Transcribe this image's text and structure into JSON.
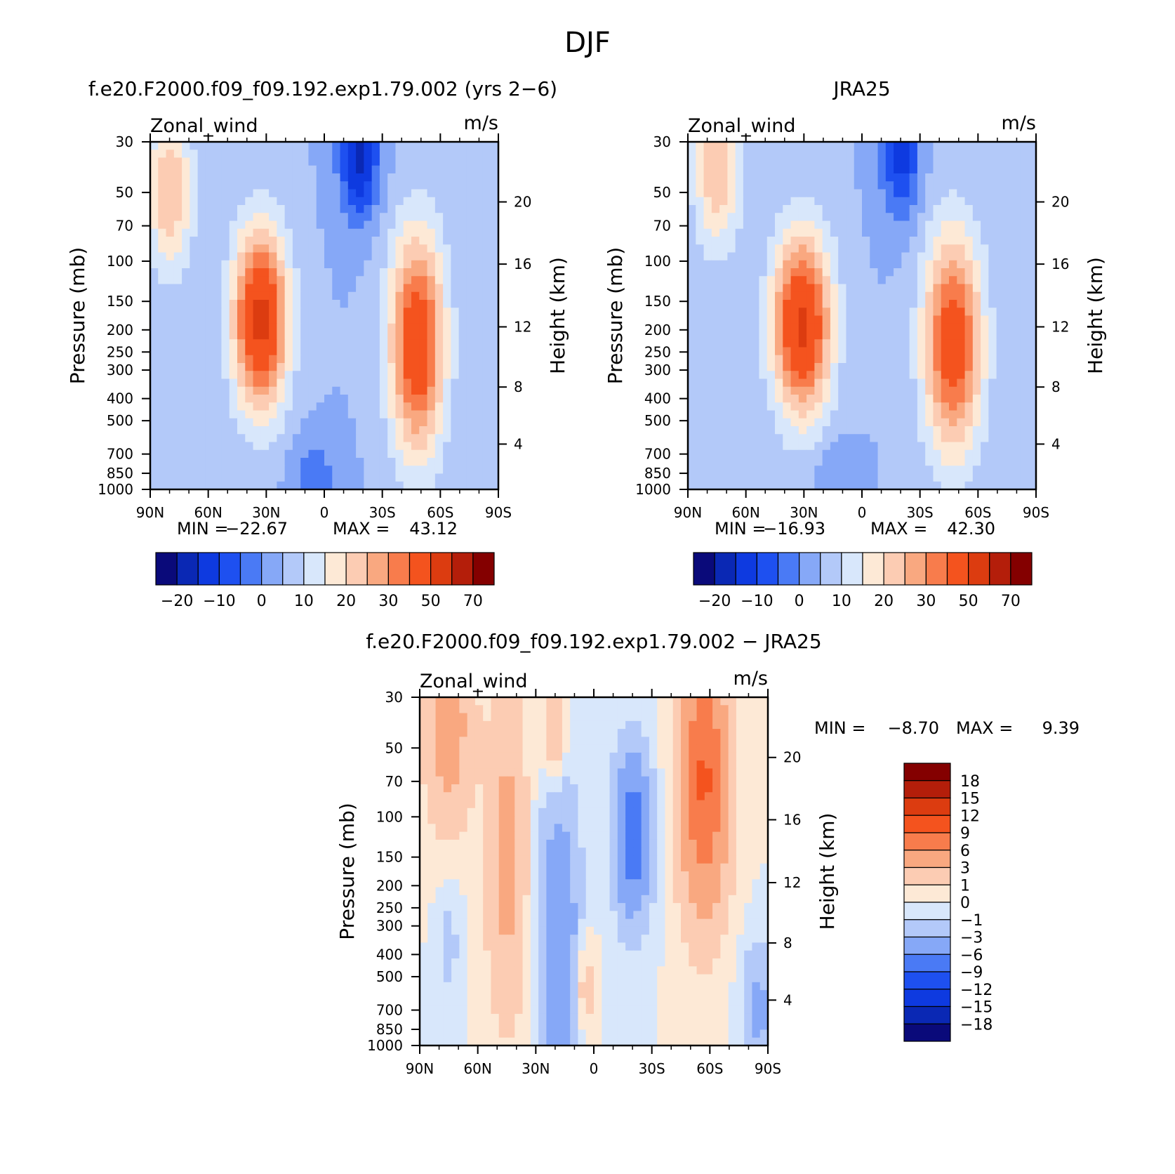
{
  "main_title": "DJF",
  "colors": {
    "abs_palette": [
      "#0a0a7a",
      "#0a28b4",
      "#0e3ae0",
      "#1e50f0",
      "#4a7af5",
      "#86a8f7",
      "#b3c9f9",
      "#d8e7fb",
      "#fde9d6",
      "#fcccb3",
      "#f9a880",
      "#f87c4c",
      "#f4531e",
      "#dc3c10",
      "#b41e0a",
      "#840000"
    ],
    "diff_palette": [
      "#0a0a7a",
      "#0a28b4",
      "#0e3ae0",
      "#1e50f0",
      "#4a7af5",
      "#86a8f7",
      "#b3c9f9",
      "#d8e7fb",
      "#fde9d6",
      "#fcccb3",
      "#f9a880",
      "#f87c4c",
      "#f4531e",
      "#dc3c10",
      "#b41e0a",
      "#840000"
    ]
  },
  "chart_data": [
    {
      "type": "heatmap",
      "title": "f.e20.F2000.f09_f09.192.exp1.79.002 (yrs 2−6)",
      "field_label": "Zonal_wind",
      "units": "m/s",
      "xlabel": "",
      "ylabel": "Pressure (mb)",
      "ylabel_right": "Height (km)",
      "x_ticks": [
        "90N",
        "60N",
        "30N",
        "0",
        "30S",
        "60S",
        "90S"
      ],
      "y_ticks": [
        "30",
        "50",
        "70",
        "100",
        "150",
        "200",
        "250",
        "300",
        "400",
        "500",
        "700",
        "850",
        "1000"
      ],
      "height_ticks": [
        "20",
        "16",
        "12",
        "8",
        "4"
      ],
      "y_scale": "log",
      "stats": {
        "min_label": "MIN =",
        "min_value": "−22.67",
        "max_label": "MAX =",
        "max_value": "43.12"
      },
      "colorbar": {
        "orientation": "horizontal",
        "labels": [
          "−20",
          "−10",
          "0",
          "10",
          "20",
          "30",
          "50",
          "70"
        ]
      },
      "features": [
        {
          "lat": 33,
          "p": 180,
          "value": 43,
          "width": 14,
          "depth": 0.9
        },
        {
          "lat": -48,
          "p": 230,
          "value": 38,
          "width": 14,
          "depth": 1.1
        },
        {
          "lat": 80,
          "p": 50,
          "value": 20,
          "width": 12,
          "depth": 0.8
        },
        {
          "lat": -18,
          "p": 35,
          "value": -22,
          "width": 10,
          "depth": 0.6
        },
        {
          "lat": 5,
          "p": 900,
          "value": -8,
          "width": 12,
          "depth": 0.4
        }
      ]
    },
    {
      "type": "heatmap",
      "title": "JRA25",
      "field_label": "Zonal_wind",
      "units": "m/s",
      "xlabel": "",
      "ylabel": "Pressure (mb)",
      "ylabel_right": "Height (km)",
      "x_ticks": [
        "90N",
        "60N",
        "30N",
        "0",
        "30S",
        "60S",
        "90S"
      ],
      "y_ticks": [
        "30",
        "50",
        "70",
        "100",
        "150",
        "200",
        "250",
        "300",
        "400",
        "500",
        "700",
        "850",
        "1000"
      ],
      "height_ticks": [
        "20",
        "16",
        "12",
        "8",
        "4"
      ],
      "y_scale": "log",
      "stats": {
        "min_label": "MIN =",
        "min_value": "−16.93",
        "max_label": "MAX =",
        "max_value": "42.30"
      },
      "colorbar": {
        "orientation": "horizontal",
        "labels": [
          "−20",
          "−10",
          "0",
          "10",
          "20",
          "30",
          "50",
          "70"
        ]
      },
      "features": [
        {
          "lat": 31,
          "p": 190,
          "value": 42,
          "width": 15,
          "depth": 0.9
        },
        {
          "lat": -47,
          "p": 230,
          "value": 36,
          "width": 15,
          "depth": 1.1
        },
        {
          "lat": 75,
          "p": 40,
          "value": 20,
          "width": 12,
          "depth": 0.8
        },
        {
          "lat": -20,
          "p": 35,
          "value": -17,
          "width": 10,
          "depth": 0.6
        },
        {
          "lat": 15,
          "p": 900,
          "value": -5,
          "width": 10,
          "depth": 0.4
        }
      ]
    },
    {
      "type": "heatmap",
      "title": "f.e20.F2000.f09_f09.192.exp1.79.002 − JRA25",
      "field_label": "Zonal_wind",
      "units": "m/s",
      "xlabel": "",
      "ylabel": "Pressure (mb)",
      "ylabel_right": "Height (km)",
      "x_ticks": [
        "90N",
        "60N",
        "30N",
        "0",
        "30S",
        "60S",
        "90S"
      ],
      "y_ticks": [
        "30",
        "50",
        "70",
        "100",
        "150",
        "200",
        "250",
        "300",
        "400",
        "500",
        "700",
        "850",
        "1000"
      ],
      "height_ticks": [
        "20",
        "16",
        "12",
        "8",
        "4"
      ],
      "y_scale": "log",
      "stats": {
        "min_label": "MIN =",
        "min_value": "−8.70",
        "max_label": "MAX =",
        "max_value": "9.39"
      },
      "colorbar": {
        "orientation": "vertical",
        "labels": [
          "18",
          "15",
          "12",
          "9",
          "6",
          "3",
          "1",
          "0",
          "−1",
          "−3",
          "−6",
          "−9",
          "−12",
          "−15",
          "−18"
        ]
      },
      "features": [
        {
          "lat": -57,
          "p": 70,
          "value": 9.4,
          "width": 12,
          "depth": 1.3
        },
        {
          "lat": 75,
          "p": 40,
          "value": 4.5,
          "width": 12,
          "depth": 1.0
        },
        {
          "lat": 45,
          "p": 150,
          "value": 4,
          "width": 10,
          "depth": 1.6
        },
        {
          "lat": 20,
          "p": 40,
          "value": 3.5,
          "width": 6,
          "depth": 0.6
        },
        {
          "lat": -20,
          "p": 120,
          "value": -8.7,
          "width": 9,
          "depth": 0.8
        },
        {
          "lat": 18,
          "p": 350,
          "value": -6,
          "width": 10,
          "depth": 1.5
        },
        {
          "lat": 5,
          "p": 550,
          "value": 2.5,
          "width": 5,
          "depth": 0.5
        },
        {
          "lat": -85,
          "p": 700,
          "value": -4,
          "width": 8,
          "depth": 0.6
        },
        {
          "lat": 75,
          "p": 350,
          "value": -1.5,
          "width": 6,
          "depth": 0.6
        }
      ]
    }
  ]
}
